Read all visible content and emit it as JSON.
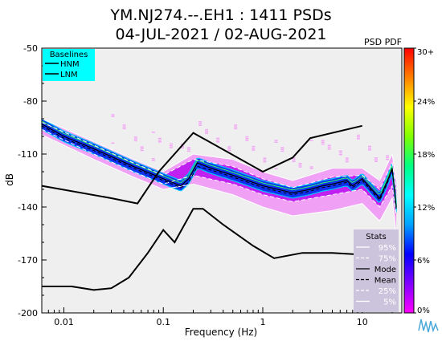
{
  "chart_data": {
    "type": "heatmap",
    "title_line1": "YM.NJ274.--.EH1 : 1411 PSDs",
    "title_line2": "04-JUL-2021 / 02-AUG-2021",
    "xlabel": "Frequency (Hz)",
    "ylabel": "dB",
    "x_scale": "log",
    "xlim": [
      0.006,
      25
    ],
    "ylim": [
      -200,
      -50
    ],
    "x_ticks": [
      {
        "value": 0.01,
        "label": "0.01"
      },
      {
        "value": 0.1,
        "label": "0.1"
      },
      {
        "value": 1,
        "label": "1"
      },
      {
        "value": 10,
        "label": "10"
      }
    ],
    "y_ticks": [
      {
        "value": -50,
        "label": "-50"
      },
      {
        "value": -80,
        "label": "-80"
      },
      {
        "value": -110,
        "label": "-110"
      },
      {
        "value": -140,
        "label": "-140"
      },
      {
        "value": -170,
        "label": "-170"
      },
      {
        "value": -200,
        "label": "-200"
      }
    ],
    "pdf_label": "PSD PDF",
    "colorbar": {
      "ticks": [
        {
          "value": 30,
          "label": "30+"
        },
        {
          "value": 24,
          "label": "24%"
        },
        {
          "value": 18,
          "label": "18%"
        },
        {
          "value": 12,
          "label": "12%"
        },
        {
          "value": 6,
          "label": "6%"
        },
        {
          "value": 0,
          "label": "0%"
        }
      ],
      "colors": [
        "#ff00ff",
        "#8000ff",
        "#0000ff",
        "#00a0ff",
        "#00ffff",
        "#00ff80",
        "#80ff00",
        "#ffff00",
        "#ff8000",
        "#ff0000"
      ]
    },
    "baselines_legend": {
      "title": "Baselines",
      "entries": [
        "HNM",
        "LNM"
      ],
      "bg": "#00ffff"
    },
    "stats_legend": {
      "title": "Stats",
      "entries": [
        "95%",
        "75%",
        "Mode",
        "Mean",
        "25%",
        "5%"
      ],
      "bg": "#ccc4dc"
    },
    "hnm": {
      "x": [
        0.006,
        0.03,
        0.055,
        0.09,
        0.2,
        1.0,
        2.0,
        3.0,
        10.0
      ],
      "y": [
        -128,
        -135,
        -138,
        -120,
        -98,
        -120,
        -112,
        -101,
        -94
      ]
    },
    "lnm": {
      "x": [
        0.006,
        0.012,
        0.02,
        0.03,
        0.045,
        0.07,
        0.1,
        0.13,
        0.2,
        0.25,
        0.4,
        0.8,
        1.3,
        2.5,
        5.0,
        10.0
      ],
      "y": [
        -185,
        -185,
        -187,
        -186,
        -180,
        -166,
        -153,
        -160,
        -141,
        -141,
        -150,
        -162,
        -169,
        -166,
        -166,
        -167
      ]
    },
    "mode": {
      "x": [
        0.006,
        0.01,
        0.02,
        0.05,
        0.1,
        0.15,
        0.18,
        0.22,
        0.3,
        0.5,
        1.0,
        2.0,
        3.0,
        4.0,
        5.0,
        7.0,
        8.0,
        10.0,
        12.0,
        15.0,
        18.0,
        20.0,
        22.0
      ],
      "y": [
        -93,
        -100,
        -107,
        -117,
        -124,
        -128,
        -124,
        -115,
        -118,
        -122,
        -128,
        -132,
        -130,
        -128,
        -127,
        -125,
        -128,
        -124,
        -129,
        -135,
        -125,
        -118,
        -140
      ]
    },
    "mean": {
      "x": [
        0.006,
        0.01,
        0.02,
        0.05,
        0.1,
        0.15,
        0.18,
        0.22,
        0.3,
        0.5,
        1.0,
        2.0,
        3.0,
        4.0,
        5.0,
        7.0,
        8.0,
        10.0,
        12.0,
        15.0,
        18.0,
        20.0,
        22.0
      ],
      "y": [
        -94,
        -101,
        -108,
        -118,
        -125,
        -129,
        -126,
        -117,
        -119,
        -123,
        -129,
        -133,
        -131,
        -129,
        -128,
        -126,
        -129,
        -125,
        -130,
        -136,
        -126,
        -119,
        -141
      ]
    },
    "p95": {
      "x": [
        0.006,
        0.02,
        0.05,
        0.1,
        0.2,
        0.5,
        1.0,
        2.0,
        5.0,
        10.0,
        15.0,
        20.0,
        22.0
      ],
      "y": [
        -90,
        -103,
        -113,
        -120,
        -110,
        -113,
        -120,
        -125,
        -118,
        -118,
        -125,
        -110,
        -125
      ]
    },
    "p75": {
      "x": [
        0.006,
        0.02,
        0.05,
        0.1,
        0.2,
        0.5,
        1.0,
        2.0,
        5.0,
        10.0,
        15.0,
        20.0,
        22.0
      ],
      "y": [
        -92,
        -105,
        -115,
        -122,
        -113,
        -117,
        -124,
        -129,
        -123,
        -122,
        -130,
        -115,
        -130
      ]
    },
    "p25": {
      "x": [
        0.006,
        0.02,
        0.05,
        0.1,
        0.2,
        0.5,
        1.0,
        2.0,
        5.0,
        10.0,
        15.0,
        20.0,
        22.0
      ],
      "y": [
        -96,
        -110,
        -120,
        -127,
        -122,
        -127,
        -133,
        -137,
        -133,
        -130,
        -140,
        -128,
        -145
      ]
    },
    "p5": {
      "x": [
        0.006,
        0.02,
        0.05,
        0.1,
        0.2,
        0.5,
        1.0,
        2.0,
        5.0,
        10.0,
        15.0,
        20.0,
        22.0
      ],
      "y": [
        -99,
        -113,
        -123,
        -130,
        -127,
        -133,
        -140,
        -145,
        -142,
        -138,
        -148,
        -135,
        -155
      ]
    }
  }
}
